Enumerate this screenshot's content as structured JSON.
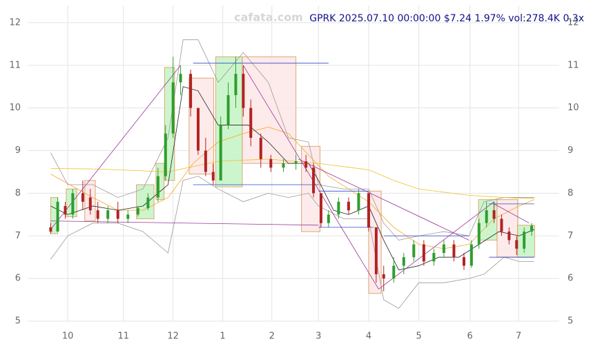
{
  "chart_data": {
    "type": "candlestick",
    "title": "GPRK 2025.07.10 00:00:00 $7.24 1.97% vol:278.4K 0.3x",
    "watermark": "cafata.com",
    "xlim": [
      -0.8,
      9.8
    ],
    "ylim": [
      5,
      12.5
    ],
    "xticks": [
      {
        "value": 0,
        "label": "10"
      },
      {
        "value": 1.11,
        "label": "11"
      },
      {
        "value": 2.1,
        "label": "12"
      },
      {
        "value": 3.09,
        "label": "1"
      },
      {
        "value": 4.07,
        "label": "2"
      },
      {
        "value": 5.0,
        "label": "3"
      },
      {
        "value": 6.0,
        "label": "4"
      },
      {
        "value": 7.0,
        "label": "5"
      },
      {
        "value": 8.02,
        "label": "6"
      },
      {
        "value": 8.99,
        "label": "7"
      }
    ],
    "yticks": [
      5,
      6,
      7,
      8,
      9,
      10,
      11,
      12
    ],
    "grid": true,
    "up_color": "#2e9e2e",
    "down_color": "#b22222",
    "candles": {
      "x": [
        -0.34,
        -0.2,
        -0.05,
        0.1,
        0.3,
        0.45,
        0.6,
        0.8,
        1.0,
        1.2,
        1.4,
        1.6,
        1.8,
        1.95,
        2.1,
        2.25,
        2.45,
        2.6,
        2.75,
        2.9,
        3.05,
        3.2,
        3.35,
        3.5,
        3.65,
        3.85,
        4.05,
        4.3,
        4.55,
        4.75,
        4.9,
        5.05,
        5.2,
        5.4,
        5.6,
        5.8,
        6.0,
        6.15,
        6.3,
        6.5,
        6.7,
        6.9,
        7.1,
        7.3,
        7.5,
        7.7,
        7.9,
        8.05,
        8.2,
        8.35,
        8.5,
        8.65,
        8.8,
        8.95,
        9.1,
        9.25
      ],
      "open": [
        7.2,
        7.1,
        7.7,
        7.5,
        8.0,
        7.9,
        7.6,
        7.4,
        7.6,
        7.4,
        7.5,
        7.65,
        7.9,
        8.4,
        9.4,
        10.6,
        10.8,
        10.0,
        9.0,
        8.5,
        8.3,
        9.6,
        10.3,
        10.8,
        10.0,
        9.3,
        8.8,
        8.6,
        8.7,
        8.75,
        8.6,
        8.0,
        7.3,
        7.5,
        7.8,
        7.6,
        8.0,
        7.2,
        6.1,
        6.0,
        6.3,
        6.5,
        6.8,
        6.4,
        6.6,
        6.8,
        6.5,
        6.3,
        6.8,
        7.3,
        7.6,
        7.4,
        7.1,
        6.9,
        6.7,
        7.1
      ],
      "high": [
        7.3,
        7.9,
        7.8,
        8.1,
        8.3,
        8.1,
        7.8,
        7.7,
        7.8,
        7.6,
        7.7,
        8.0,
        8.6,
        9.6,
        11.2,
        11.0,
        10.9,
        10.0,
        9.3,
        8.7,
        9.8,
        10.6,
        11.2,
        11.0,
        10.2,
        9.4,
        8.9,
        8.8,
        8.9,
        8.9,
        8.7,
        8.0,
        7.6,
        7.9,
        7.9,
        8.1,
        8.0,
        7.2,
        6.3,
        6.5,
        6.6,
        6.9,
        6.9,
        6.7,
        6.9,
        6.9,
        6.6,
        6.9,
        7.4,
        7.8,
        7.8,
        7.5,
        7.2,
        7.0,
        7.2,
        7.3
      ],
      "low": [
        7.05,
        7.1,
        7.4,
        7.4,
        7.6,
        7.5,
        7.3,
        7.3,
        7.3,
        7.3,
        7.45,
        7.6,
        7.8,
        8.3,
        9.3,
        10.3,
        9.8,
        8.9,
        8.4,
        8.2,
        8.3,
        9.5,
        10.0,
        9.8,
        9.1,
        8.6,
        8.5,
        8.5,
        8.55,
        8.5,
        7.9,
        7.2,
        7.2,
        7.4,
        7.5,
        7.5,
        7.1,
        5.9,
        5.7,
        5.9,
        6.1,
        6.4,
        6.3,
        6.3,
        6.5,
        6.4,
        6.2,
        6.25,
        6.7,
        7.2,
        7.3,
        7.0,
        6.8,
        6.55,
        6.6,
        7.0
      ],
      "close": [
        7.1,
        7.8,
        7.5,
        8.0,
        7.8,
        7.6,
        7.4,
        7.6,
        7.4,
        7.5,
        7.65,
        7.9,
        8.4,
        9.4,
        10.6,
        10.8,
        10.0,
        9.0,
        8.5,
        8.3,
        9.6,
        10.3,
        10.8,
        10.0,
        9.3,
        8.8,
        8.6,
        8.7,
        8.75,
        8.6,
        8.0,
        7.3,
        7.5,
        7.8,
        7.6,
        8.0,
        7.2,
        6.1,
        6.0,
        6.3,
        6.5,
        6.8,
        6.4,
        6.6,
        6.8,
        6.5,
        6.3,
        6.8,
        7.3,
        7.6,
        7.4,
        7.1,
        6.9,
        6.7,
        7.1,
        7.24
      ]
    },
    "series": [
      {
        "color": "#999999",
        "x": [
          -0.34,
          0,
          0.5,
          1,
          1.5,
          2,
          2.3,
          2.6,
          3,
          3.5,
          4,
          4.4,
          4.8,
          5,
          5.5,
          6,
          6.3,
          6.6,
          7,
          7.5,
          8,
          8.3,
          8.7,
          9,
          9.3
        ],
        "values": [
          8.95,
          8.2,
          8.2,
          7.9,
          8.1,
          9.3,
          11.6,
          11.6,
          10.6,
          11.3,
          10.6,
          9.3,
          9.2,
          8.2,
          8.1,
          8.1,
          7.3,
          6.9,
          7.0,
          7.1,
          7.0,
          7.8,
          7.9,
          7.9,
          7.9
        ]
      },
      {
        "color": "#999999",
        "x": [
          -0.34,
          0,
          0.5,
          1,
          1.5,
          2,
          2.3,
          2.6,
          3,
          3.5,
          4,
          4.4,
          4.8,
          5,
          5.5,
          6,
          6.3,
          6.6,
          7,
          7.5,
          8,
          8.3,
          8.7,
          9,
          9.3
        ],
        "values": [
          6.45,
          7.0,
          7.3,
          7.3,
          7.1,
          6.6,
          8.3,
          8.4,
          8.1,
          7.8,
          8.0,
          7.9,
          8.0,
          7.7,
          7.4,
          7.4,
          5.5,
          5.3,
          5.9,
          5.9,
          6.0,
          6.1,
          6.5,
          6.4,
          6.4
        ]
      },
      {
        "color": "#f0c020",
        "x": [
          -0.34,
          0.5,
          1,
          2,
          3,
          4,
          5,
          6,
          6.5,
          7,
          8,
          9,
          9.3
        ],
        "values": [
          8.58,
          8.57,
          8.55,
          8.5,
          8.75,
          8.8,
          8.7,
          8.55,
          8.3,
          8.1,
          7.95,
          7.88,
          7.88
        ]
      },
      {
        "color": "#f5a623",
        "x": [
          -0.34,
          0.5,
          1,
          1.5,
          2,
          2.5,
          3,
          3.5,
          4,
          4.4,
          4.8,
          5.2,
          5.6,
          6,
          6.5,
          7,
          7.5,
          8,
          8.5,
          9,
          9.3
        ],
        "values": [
          8.45,
          7.9,
          7.6,
          7.6,
          7.9,
          8.7,
          9.2,
          9.4,
          9.55,
          9.4,
          8.9,
          8.4,
          8.1,
          7.8,
          7.2,
          6.8,
          6.7,
          6.8,
          7.4,
          7.7,
          7.85
        ]
      },
      {
        "color": "#222222",
        "x": [
          -0.34,
          0,
          0.5,
          1,
          1.5,
          2,
          2.3,
          2.6,
          3,
          3.3,
          3.6,
          4,
          4.4,
          4.8,
          5,
          5.3,
          5.6,
          6,
          6.3,
          6.6,
          7,
          7.4,
          7.8,
          8.2,
          8.6,
          9,
          9.3
        ],
        "values": [
          7.7,
          7.5,
          7.7,
          7.6,
          7.7,
          8.2,
          10.5,
          10.4,
          9.6,
          9.6,
          9.6,
          9.2,
          8.7,
          8.7,
          8.3,
          7.6,
          7.5,
          7.7,
          6.9,
          6.2,
          6.3,
          6.5,
          6.5,
          6.8,
          7.1,
          7.0,
          7.15
        ]
      }
    ],
    "boxes": [
      {
        "x": [
          -0.34,
          -0.2
        ],
        "y": [
          7.05,
          7.9
        ],
        "color": "#c8f5c8"
      },
      {
        "x": [
          -0.03,
          0.18
        ],
        "y": [
          7.45,
          8.1
        ],
        "color": "#c8f5c8"
      },
      {
        "x": [
          0.34,
          0.55
        ],
        "y": [
          7.35,
          8.3
        ],
        "color": "#fde8e8"
      },
      {
        "x": [
          1.37,
          1.72
        ],
        "y": [
          7.4,
          8.2
        ],
        "color": "#c8f5c8"
      },
      {
        "x": [
          1.76,
          1.92
        ],
        "y": [
          7.85,
          8.7
        ],
        "color": "#c8f5c8"
      },
      {
        "x": [
          1.93,
          2.13
        ],
        "y": [
          8.3,
          10.95
        ],
        "color": "#c8f5c8"
      },
      {
        "x": [
          2.42,
          2.91
        ],
        "y": [
          8.45,
          10.7
        ],
        "color": "#fde8e8"
      },
      {
        "x": [
          2.95,
          3.48
        ],
        "y": [
          8.15,
          11.2
        ],
        "color": "#c8f5c8"
      },
      {
        "x": [
          3.48,
          4.55
        ],
        "y": [
          8.7,
          11.2
        ],
        "color": "#fde8e8"
      },
      {
        "x": [
          4.66,
          5.03
        ],
        "y": [
          7.1,
          9.1
        ],
        "color": "#fde8e8"
      },
      {
        "x": [
          6.0,
          6.25
        ],
        "y": [
          5.65,
          8.05
        ],
        "color": "#fde8e8"
      },
      {
        "x": [
          8.19,
          8.56
        ],
        "y": [
          6.9,
          7.85
        ],
        "color": "#c8f5c8"
      },
      {
        "x": [
          8.56,
          8.97
        ],
        "y": [
          6.5,
          7.85
        ],
        "color": "#fde8e8"
      },
      {
        "x": [
          8.97,
          9.31
        ],
        "y": [
          6.5,
          7.25
        ],
        "color": "#c8f5c8"
      }
    ],
    "lines": [
      {
        "x": [
          -0.34,
          2.25
        ],
        "y": [
          7.15,
          11.0
        ],
        "color": "#993399"
      },
      {
        "x": [
          -0.34,
          5.0
        ],
        "y": [
          7.35,
          7.25
        ],
        "color": "#993399"
      },
      {
        "x": [
          3.5,
          6.2
        ],
        "y": [
          11.0,
          5.75
        ],
        "color": "#993399"
      },
      {
        "x": [
          4.6,
          8.0
        ],
        "y": [
          8.8,
          6.9
        ],
        "color": "#993399"
      },
      {
        "x": [
          6.2,
          8.5
        ],
        "y": [
          5.75,
          7.8
        ],
        "color": "#993399"
      },
      {
        "x": [
          8.5,
          9.2
        ],
        "y": [
          7.75,
          7.3
        ],
        "color": "#993399"
      },
      {
        "x": [
          2.5,
          5.2
        ],
        "y": [
          11.05,
          11.05
        ],
        "color": "#3344cc"
      },
      {
        "x": [
          2.5,
          5.0
        ],
        "y": [
          8.2,
          8.2
        ],
        "color": "#3344cc"
      },
      {
        "x": [
          5.0,
          6.0
        ],
        "y": [
          8.05,
          8.05
        ],
        "color": "#3344cc"
      },
      {
        "x": [
          5.0,
          6.1
        ],
        "y": [
          7.2,
          7.2
        ],
        "color": "#3344cc"
      },
      {
        "x": [
          6.3,
          8.0
        ],
        "y": [
          7.0,
          7.0
        ],
        "color": "#3344cc"
      },
      {
        "x": [
          8.4,
          9.3
        ],
        "y": [
          7.75,
          7.75
        ],
        "color": "#3344cc"
      },
      {
        "x": [
          8.4,
          9.3
        ],
        "y": [
          6.5,
          6.5
        ],
        "color": "#3344cc"
      }
    ]
  }
}
